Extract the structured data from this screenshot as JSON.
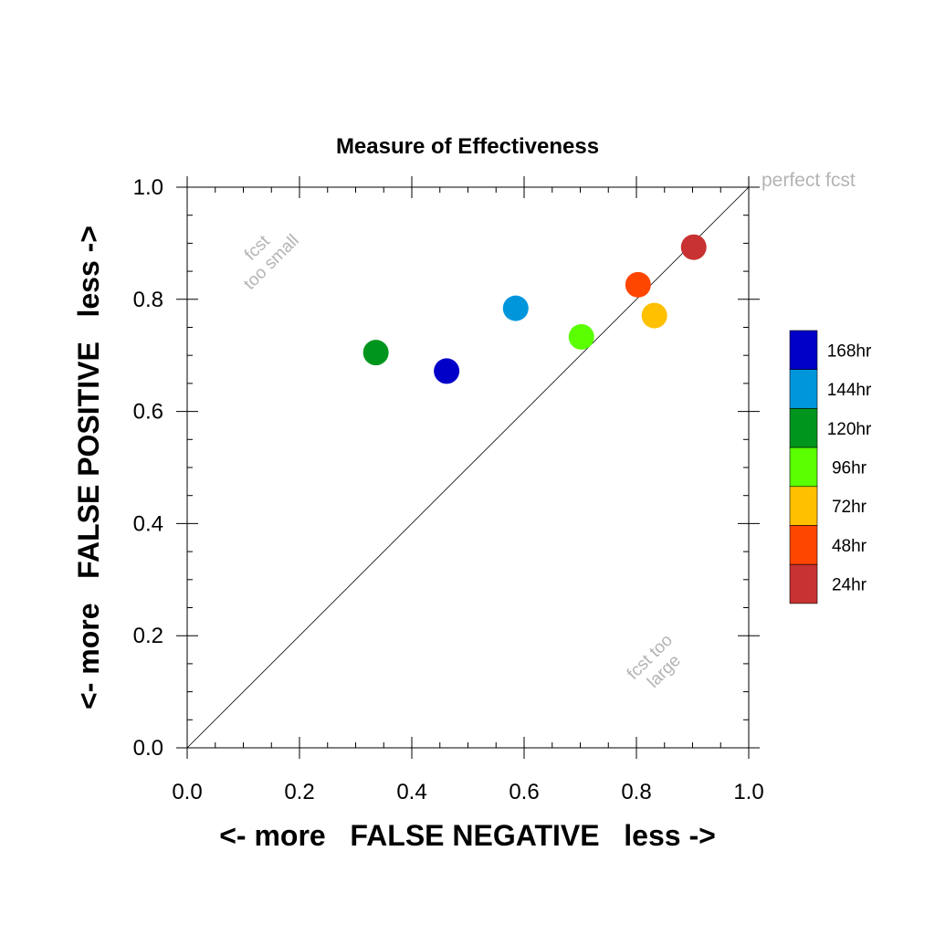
{
  "chart_data": {
    "type": "scatter",
    "title": "Measure of Effectiveness",
    "xlabel": "<- more   FALSE NEGATIVE   less ->",
    "ylabel": "<- more   FALSE POSITIVE   less ->",
    "xlim": [
      0,
      1
    ],
    "ylim": [
      0,
      1
    ],
    "x_ticks": [
      "0.0",
      "0.2",
      "0.4",
      "0.6",
      "0.8",
      "1.0"
    ],
    "y_ticks": [
      "0.0",
      "0.2",
      "0.4",
      "0.6",
      "0.8",
      "1.0"
    ],
    "diagonal_line": true,
    "annotations": {
      "perfect": "perfect fcst",
      "small_line1": "fcst",
      "small_line2": "too small",
      "large_line1": "fcst too",
      "large_line2": "large"
    },
    "legend_placement": "right",
    "series": [
      {
        "name": "168hr",
        "color": "#0000c8",
        "x": 0.462,
        "y": 0.672
      },
      {
        "name": "144hr",
        "color": "#0096dc",
        "x": 0.585,
        "y": 0.784
      },
      {
        "name": "120hr",
        "color": "#00961e",
        "x": 0.336,
        "y": 0.705
      },
      {
        "name": "96hr",
        "color": "#5aff00",
        "x": 0.702,
        "y": 0.733
      },
      {
        "name": "72hr",
        "color": "#ffc000",
        "x": 0.832,
        "y": 0.771
      },
      {
        "name": "48hr",
        "color": "#ff4600",
        "x": 0.803,
        "y": 0.826
      },
      {
        "name": "24hr",
        "color": "#c83232",
        "x": 0.902,
        "y": 0.893
      }
    ]
  }
}
